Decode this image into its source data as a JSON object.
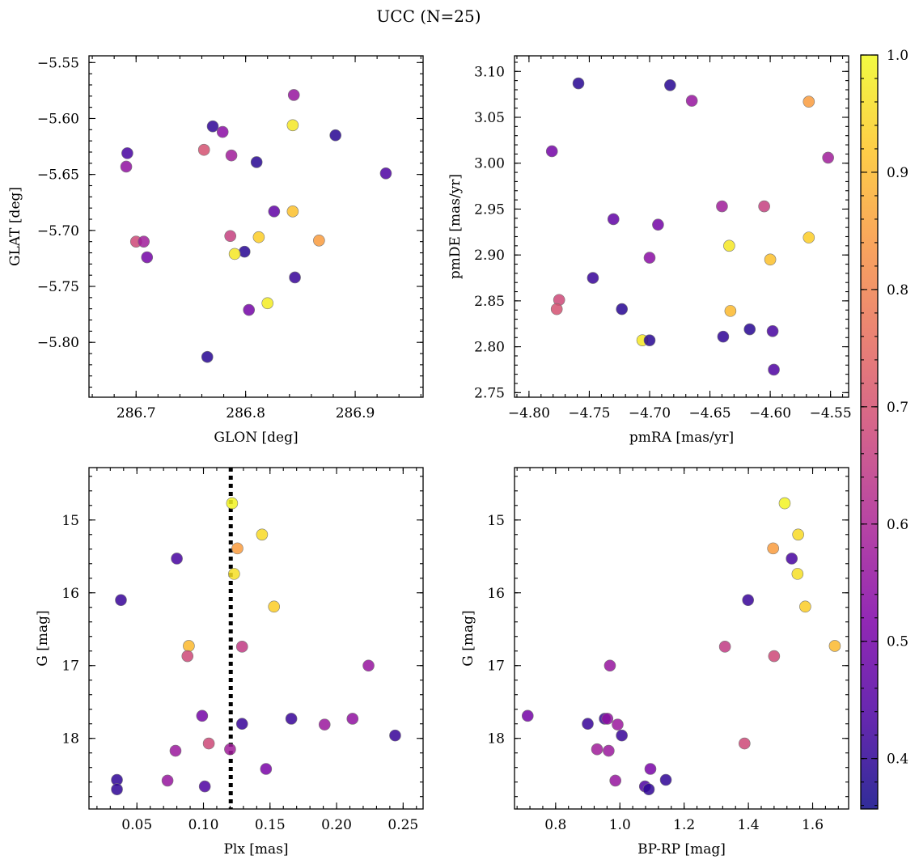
{
  "title": "UCC (N=25)",
  "colorbar": {
    "range": [
      0.357,
      1.0
    ],
    "ticks": [
      0.4,
      0.5,
      0.6,
      0.7,
      0.8,
      0.9,
      1.0
    ],
    "tick_labels": [
      "0.4",
      "0.5",
      "0.6",
      "0.7",
      "0.8",
      "0.9",
      "1.0"
    ],
    "colormap": "plasma",
    "point_alpha": 0.85
  },
  "chart_data": [
    {
      "type": "scatter",
      "id": "glon-glat",
      "xlabel": "GLON [deg]",
      "ylabel": "GLAT [deg]",
      "xlim": [
        286.657,
        286.962
      ],
      "ylim": [
        -5.849,
        -5.544
      ],
      "xticks": [
        286.7,
        286.8,
        286.9
      ],
      "xtick_labels": [
        "286.7",
        "286.8",
        "286.9"
      ],
      "yticks": [
        -5.55,
        -5.6,
        -5.65,
        -5.7,
        -5.75,
        -5.8
      ],
      "ytick_labels": [
        "−5.55",
        "−5.60",
        "−5.65",
        "−5.70",
        "−5.75",
        "−5.80"
      ],
      "points": [
        {
          "x": 286.844,
          "y": -5.579,
          "c": 0.56
        },
        {
          "x": 286.77,
          "y": -5.607,
          "c": 0.4
        },
        {
          "x": 286.779,
          "y": -5.612,
          "c": 0.54
        },
        {
          "x": 286.843,
          "y": -5.606,
          "c": 0.97
        },
        {
          "x": 286.882,
          "y": -5.615,
          "c": 0.39
        },
        {
          "x": 286.692,
          "y": -5.631,
          "c": 0.43
        },
        {
          "x": 286.762,
          "y": -5.628,
          "c": 0.7
        },
        {
          "x": 286.787,
          "y": -5.633,
          "c": 0.58
        },
        {
          "x": 286.81,
          "y": -5.639,
          "c": 0.39
        },
        {
          "x": 286.691,
          "y": -5.643,
          "c": 0.55
        },
        {
          "x": 286.928,
          "y": -5.649,
          "c": 0.44
        },
        {
          "x": 286.826,
          "y": -5.683,
          "c": 0.47
        },
        {
          "x": 286.843,
          "y": -5.683,
          "c": 0.91
        },
        {
          "x": 286.786,
          "y": -5.705,
          "c": 0.66
        },
        {
          "x": 286.812,
          "y": -5.706,
          "c": 0.93
        },
        {
          "x": 286.867,
          "y": -5.709,
          "c": 0.85
        },
        {
          "x": 286.7,
          "y": -5.71,
          "c": 0.68
        },
        {
          "x": 286.707,
          "y": -5.71,
          "c": 0.58
        },
        {
          "x": 286.799,
          "y": -5.719,
          "c": 0.39
        },
        {
          "x": 286.79,
          "y": -5.721,
          "c": 0.97
        },
        {
          "x": 286.71,
          "y": -5.724,
          "c": 0.5
        },
        {
          "x": 286.845,
          "y": -5.742,
          "c": 0.41
        },
        {
          "x": 286.82,
          "y": -5.765,
          "c": 0.98
        },
        {
          "x": 286.803,
          "y": -5.771,
          "c": 0.5
        },
        {
          "x": 286.765,
          "y": -5.813,
          "c": 0.39
        }
      ]
    },
    {
      "type": "scatter",
      "id": "pmra-pmde",
      "xlabel": "pmRA [mas/yr]",
      "ylabel": "pmDE [mas/yr]",
      "xlim": [
        -4.812,
        -4.535
      ],
      "ylim": [
        2.745,
        3.117
      ],
      "xticks": [
        -4.8,
        -4.75,
        -4.7,
        -4.65,
        -4.6,
        -4.55
      ],
      "xtick_labels": [
        "−4.80",
        "−4.75",
        "−4.70",
        "−4.65",
        "−4.60",
        "−4.55"
      ],
      "yticks": [
        2.75,
        2.8,
        2.85,
        2.9,
        2.95,
        3.0,
        3.05,
        3.1
      ],
      "ytick_labels": [
        "2.75",
        "2.80",
        "2.85",
        "2.90",
        "2.95",
        "3.00",
        "3.05",
        "3.10"
      ],
      "points": [
        {
          "x": -4.759,
          "y": 3.087,
          "c": 0.39
        },
        {
          "x": -4.683,
          "y": 3.085,
          "c": 0.39
        },
        {
          "x": -4.665,
          "y": 3.068,
          "c": 0.56
        },
        {
          "x": -4.568,
          "y": 3.067,
          "c": 0.85
        },
        {
          "x": -4.781,
          "y": 3.013,
          "c": 0.5
        },
        {
          "x": -4.552,
          "y": 3.006,
          "c": 0.58
        },
        {
          "x": -4.64,
          "y": 2.953,
          "c": 0.58
        },
        {
          "x": -4.605,
          "y": 2.953,
          "c": 0.66
        },
        {
          "x": -4.73,
          "y": 2.939,
          "c": 0.47
        },
        {
          "x": -4.693,
          "y": 2.933,
          "c": 0.5
        },
        {
          "x": -4.568,
          "y": 2.919,
          "c": 0.93
        },
        {
          "x": -4.634,
          "y": 2.91,
          "c": 0.97
        },
        {
          "x": -4.7,
          "y": 2.897,
          "c": 0.54
        },
        {
          "x": -4.6,
          "y": 2.895,
          "c": 0.91
        },
        {
          "x": -4.747,
          "y": 2.875,
          "c": 0.41
        },
        {
          "x": -4.775,
          "y": 2.851,
          "c": 0.68
        },
        {
          "x": -4.777,
          "y": 2.841,
          "c": 0.7
        },
        {
          "x": -4.723,
          "y": 2.841,
          "c": 0.39
        },
        {
          "x": -4.633,
          "y": 2.839,
          "c": 0.9
        },
        {
          "x": -4.617,
          "y": 2.819,
          "c": 0.39
        },
        {
          "x": -4.598,
          "y": 2.817,
          "c": 0.43
        },
        {
          "x": -4.639,
          "y": 2.811,
          "c": 0.4
        },
        {
          "x": -4.706,
          "y": 2.807,
          "c": 0.97
        },
        {
          "x": -4.7,
          "y": 2.807,
          "c": 0.39
        },
        {
          "x": -4.597,
          "y": 2.775,
          "c": 0.44
        }
      ]
    },
    {
      "type": "scatter",
      "id": "plx-g",
      "xlabel": "Plx [mas]",
      "ylabel": "G [mag]",
      "xlim": [
        0.014,
        0.265
      ],
      "ylim": [
        18.97,
        14.28
      ],
      "xticks": [
        0.05,
        0.1,
        0.15,
        0.2,
        0.25
      ],
      "xtick_labels": [
        "0.05",
        "0.10",
        "0.15",
        "0.20",
        "0.25"
      ],
      "yticks": [
        15,
        16,
        17,
        18
      ],
      "ytick_labels": [
        "15",
        "16",
        "17",
        "18"
      ],
      "vline": 0.1205,
      "points": [
        {
          "x": 0.1215,
          "y": 14.77,
          "c": 0.99
        },
        {
          "x": 0.144,
          "y": 15.2,
          "c": 0.95
        },
        {
          "x": 0.1255,
          "y": 15.39,
          "c": 0.85
        },
        {
          "x": 0.08,
          "y": 15.53,
          "c": 0.43
        },
        {
          "x": 0.123,
          "y": 15.74,
          "c": 0.96
        },
        {
          "x": 0.038,
          "y": 16.1,
          "c": 0.41
        },
        {
          "x": 0.153,
          "y": 16.19,
          "c": 0.93
        },
        {
          "x": 0.089,
          "y": 16.73,
          "c": 0.9
        },
        {
          "x": 0.129,
          "y": 16.74,
          "c": 0.65
        },
        {
          "x": 0.088,
          "y": 16.87,
          "c": 0.68
        },
        {
          "x": 0.224,
          "y": 17.0,
          "c": 0.56
        },
        {
          "x": 0.099,
          "y": 17.69,
          "c": 0.5
        },
        {
          "x": 0.166,
          "y": 17.73,
          "c": 0.41
        },
        {
          "x": 0.212,
          "y": 17.73,
          "c": 0.55
        },
        {
          "x": 0.129,
          "y": 17.8,
          "c": 0.41
        },
        {
          "x": 0.191,
          "y": 17.81,
          "c": 0.57
        },
        {
          "x": 0.244,
          "y": 17.96,
          "c": 0.41
        },
        {
          "x": 0.104,
          "y": 18.07,
          "c": 0.68
        },
        {
          "x": 0.12,
          "y": 18.15,
          "c": 0.58
        },
        {
          "x": 0.079,
          "y": 18.17,
          "c": 0.57
        },
        {
          "x": 0.147,
          "y": 18.42,
          "c": 0.51
        },
        {
          "x": 0.035,
          "y": 18.57,
          "c": 0.4
        },
        {
          "x": 0.073,
          "y": 18.58,
          "c": 0.56
        },
        {
          "x": 0.101,
          "y": 18.66,
          "c": 0.44
        },
        {
          "x": 0.035,
          "y": 18.7,
          "c": 0.4
        }
      ]
    },
    {
      "type": "scatter",
      "id": "bprp-g",
      "xlabel": "BP-RP [mag]",
      "ylabel": "G [mag]",
      "xlim": [
        0.672,
        1.712
      ],
      "ylim": [
        18.97,
        14.28
      ],
      "xticks": [
        0.8,
        1.0,
        1.2,
        1.4,
        1.6
      ],
      "xtick_labels": [
        "0.8",
        "1.0",
        "1.2",
        "1.4",
        "1.6"
      ],
      "yticks": [
        15,
        16,
        17,
        18
      ],
      "ytick_labels": [
        "15",
        "16",
        "17",
        "18"
      ],
      "points": [
        {
          "x": 1.513,
          "y": 14.77,
          "c": 0.99
        },
        {
          "x": 1.555,
          "y": 15.2,
          "c": 0.95
        },
        {
          "x": 1.477,
          "y": 15.39,
          "c": 0.85
        },
        {
          "x": 1.535,
          "y": 15.53,
          "c": 0.43
        },
        {
          "x": 1.553,
          "y": 15.74,
          "c": 0.96
        },
        {
          "x": 1.399,
          "y": 16.1,
          "c": 0.41
        },
        {
          "x": 1.577,
          "y": 16.19,
          "c": 0.93
        },
        {
          "x": 1.669,
          "y": 16.73,
          "c": 0.9
        },
        {
          "x": 1.327,
          "y": 16.74,
          "c": 0.65
        },
        {
          "x": 1.48,
          "y": 16.87,
          "c": 0.68
        },
        {
          "x": 0.969,
          "y": 17.0,
          "c": 0.56
        },
        {
          "x": 0.713,
          "y": 17.69,
          "c": 0.5
        },
        {
          "x": 0.953,
          "y": 17.73,
          "c": 0.41
        },
        {
          "x": 0.961,
          "y": 17.73,
          "c": 0.55
        },
        {
          "x": 0.9,
          "y": 17.8,
          "c": 0.41
        },
        {
          "x": 0.993,
          "y": 17.81,
          "c": 0.57
        },
        {
          "x": 1.006,
          "y": 17.96,
          "c": 0.41
        },
        {
          "x": 1.388,
          "y": 18.07,
          "c": 0.68
        },
        {
          "x": 0.929,
          "y": 18.15,
          "c": 0.58
        },
        {
          "x": 0.965,
          "y": 18.17,
          "c": 0.57
        },
        {
          "x": 1.095,
          "y": 18.42,
          "c": 0.51
        },
        {
          "x": 1.143,
          "y": 18.57,
          "c": 0.4
        },
        {
          "x": 0.986,
          "y": 18.58,
          "c": 0.56
        },
        {
          "x": 1.078,
          "y": 18.66,
          "c": 0.44
        },
        {
          "x": 1.09,
          "y": 18.7,
          "c": 0.4
        }
      ]
    }
  ]
}
